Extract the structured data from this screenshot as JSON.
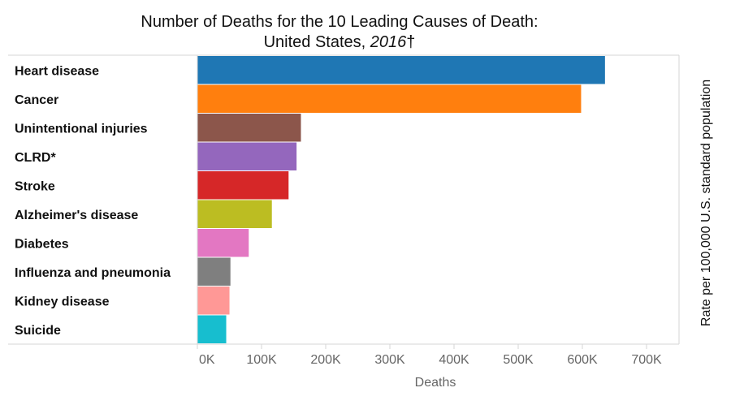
{
  "chart_data": {
    "type": "bar",
    "orientation": "horizontal",
    "title_line1": "Number of Deaths for the 10 Leading Causes of Death:",
    "title_line2_prefix": "United States, ",
    "title_line2_year": "2016",
    "title_line2_suffix": "†",
    "xlabel": "Deaths",
    "right_axis_label": "Rate per 100,000 U.S. standard population",
    "xlim": [
      0,
      750000
    ],
    "x_ticks": [
      0,
      100000,
      200000,
      300000,
      400000,
      500000,
      600000,
      700000
    ],
    "x_tick_labels": [
      "0K",
      "100K",
      "200K",
      "300K",
      "400K",
      "500K",
      "600K",
      "700K"
    ],
    "categories": [
      "Heart disease",
      "Cancer",
      "Unintentional injuries",
      "CLRD*",
      "Stroke",
      "Alzheimer's disease",
      "Diabetes",
      "Influenza and pneumonia",
      "Kidney disease",
      "Suicide"
    ],
    "values": [
      635260,
      598038,
      161374,
      154596,
      142142,
      116103,
      80058,
      51537,
      50046,
      44965
    ],
    "colors": [
      "#1f77b4",
      "#ff7f0e",
      "#8c564b",
      "#9467bd",
      "#d62728",
      "#bcbd22",
      "#e377c2",
      "#7f7f7f",
      "#ff9896",
      "#17becf"
    ],
    "grid": false,
    "legend": "none"
  }
}
